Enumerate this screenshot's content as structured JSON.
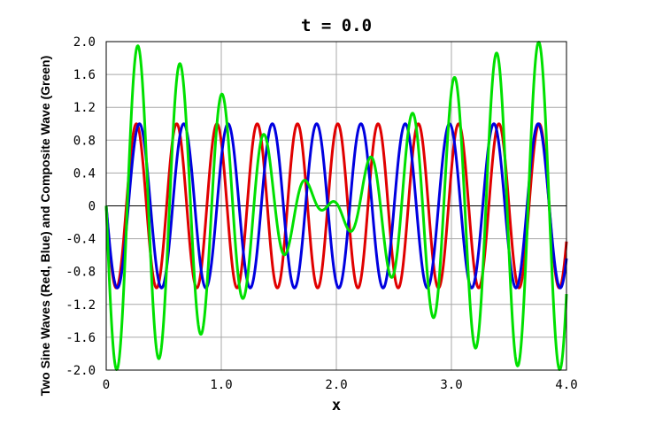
{
  "chart_data": {
    "type": "line",
    "title": "t = 0.0",
    "xlabel": "x",
    "ylabel": "Two Sine Waves (Red, Blue) and Composite Wave (Green)",
    "xlim": [
      0,
      4.0
    ],
    "ylim": [
      -2.0,
      2.0
    ],
    "x_ticks": [
      0,
      1.0,
      2.0,
      3.0,
      4.0
    ],
    "x_tick_labels": [
      "0",
      "1.0",
      "2.0",
      "3.0",
      "4.0"
    ],
    "y_ticks": [
      2.0,
      1.6,
      1.2,
      0.8,
      0.4,
      0,
      -0.4,
      -0.8,
      -1.2,
      -1.6,
      -2.0
    ],
    "y_tick_labels": [
      "2.0",
      "1.6",
      "1.2",
      "0.8",
      "0.4",
      "0",
      "-0.4",
      "-0.8",
      "-1.2",
      "-1.6",
      "-2.0"
    ],
    "grid": true,
    "series": [
      {
        "color": "#e00000",
        "function": "-sin(2*pi*x/0.35)",
        "x_step": 0.005
      },
      {
        "color": "#0000e0",
        "function": "-sin(2*pi*x/0.385)",
        "x_step": 0.005
      },
      {
        "color": "#00e000",
        "function": "-sin(2*pi*x/0.35) - sin(2*pi*x/0.385)",
        "x_step": 0.005
      }
    ]
  }
}
